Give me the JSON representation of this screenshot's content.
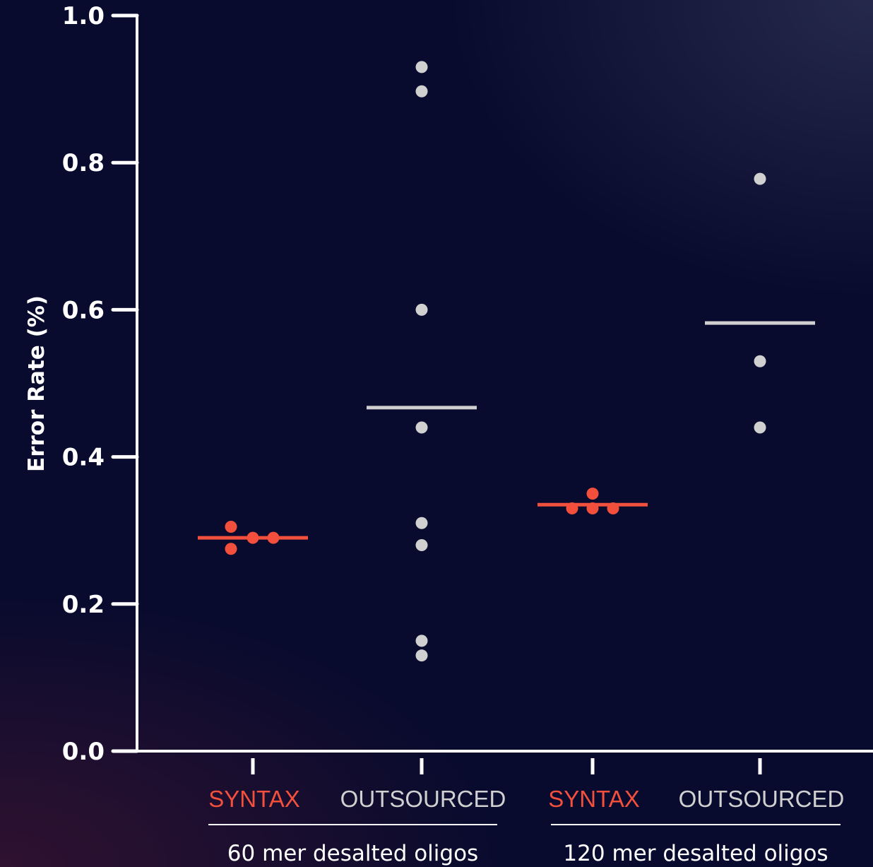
{
  "chart_data": {
    "type": "scatter",
    "ylabel": "Error Rate (%)",
    "ylim": [
      0,
      1.0
    ],
    "yticks": [
      "0.0",
      "0.2",
      "0.4",
      "0.6",
      "0.8",
      "1.0"
    ],
    "colors": {
      "syntax": "#f2503c",
      "outsourced": "#d0d0d0",
      "axis": "#ffffff"
    },
    "categories": [
      {
        "label": "SYNTAX",
        "color": "#f2503c",
        "mean": 0.29,
        "points": [
          0.305,
          0.275,
          0.29,
          0.29
        ]
      },
      {
        "label": "OUTSOURCED",
        "color": "#d0d0d0",
        "mean": 0.467,
        "points": [
          0.93,
          0.897,
          0.6,
          0.44,
          0.31,
          0.28,
          0.15,
          0.13
        ]
      },
      {
        "label": "SYNTAX",
        "color": "#f2503c",
        "mean": 0.335,
        "points": [
          0.35,
          0.33,
          0.33,
          0.33
        ]
      },
      {
        "label": "OUTSOURCED",
        "color": "#d0d0d0",
        "mean": 0.582,
        "points": [
          0.778,
          0.53,
          0.44
        ]
      }
    ],
    "groups": [
      {
        "label": "60 mer desalted oligos",
        "categories": [
          0,
          1
        ]
      },
      {
        "label": "120 mer desalted oligos",
        "categories": [
          2,
          3
        ]
      }
    ]
  }
}
